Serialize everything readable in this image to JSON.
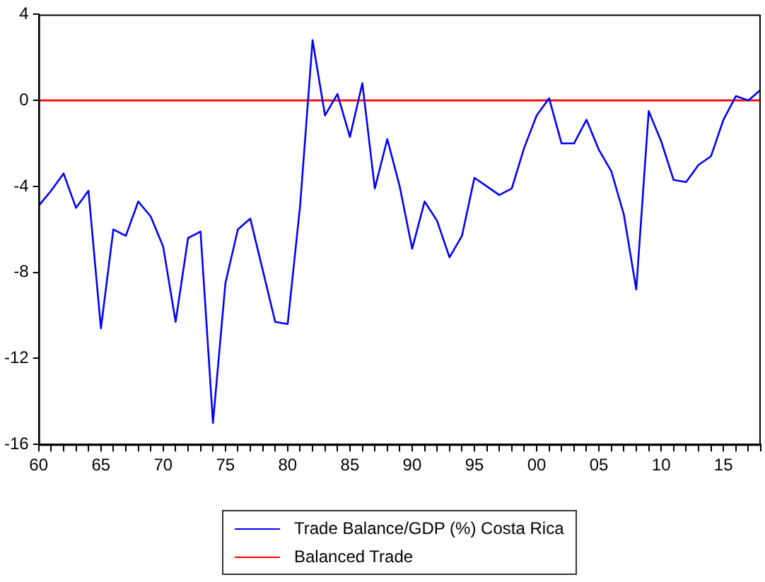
{
  "chart_data": {
    "type": "line",
    "xlim": [
      1960,
      2018
    ],
    "ylim": [
      -16,
      4
    ],
    "yticks": [
      -16,
      -12,
      -8,
      -4,
      0,
      4
    ],
    "xticks": [
      {
        "value": 1960,
        "label": "60"
      },
      {
        "value": 1961,
        "label": null
      },
      {
        "value": 1962,
        "label": null
      },
      {
        "value": 1963,
        "label": null
      },
      {
        "value": 1964,
        "label": null
      },
      {
        "value": 1965,
        "label": "65"
      },
      {
        "value": 1966,
        "label": null
      },
      {
        "value": 1967,
        "label": null
      },
      {
        "value": 1968,
        "label": null
      },
      {
        "value": 1969,
        "label": null
      },
      {
        "value": 1970,
        "label": "70"
      },
      {
        "value": 1971,
        "label": null
      },
      {
        "value": 1972,
        "label": null
      },
      {
        "value": 1973,
        "label": null
      },
      {
        "value": 1974,
        "label": null
      },
      {
        "value": 1975,
        "label": "75"
      },
      {
        "value": 1976,
        "label": null
      },
      {
        "value": 1977,
        "label": null
      },
      {
        "value": 1978,
        "label": null
      },
      {
        "value": 1979,
        "label": null
      },
      {
        "value": 1980,
        "label": "80"
      },
      {
        "value": 1981,
        "label": null
      },
      {
        "value": 1982,
        "label": null
      },
      {
        "value": 1983,
        "label": null
      },
      {
        "value": 1984,
        "label": null
      },
      {
        "value": 1985,
        "label": "85"
      },
      {
        "value": 1986,
        "label": null
      },
      {
        "value": 1987,
        "label": null
      },
      {
        "value": 1988,
        "label": null
      },
      {
        "value": 1989,
        "label": null
      },
      {
        "value": 1990,
        "label": "90"
      },
      {
        "value": 1991,
        "label": null
      },
      {
        "value": 1992,
        "label": null
      },
      {
        "value": 1993,
        "label": null
      },
      {
        "value": 1994,
        "label": null
      },
      {
        "value": 1995,
        "label": "95"
      },
      {
        "value": 1996,
        "label": null
      },
      {
        "value": 1997,
        "label": null
      },
      {
        "value": 1998,
        "label": null
      },
      {
        "value": 1999,
        "label": null
      },
      {
        "value": 2000,
        "label": "00"
      },
      {
        "value": 2001,
        "label": null
      },
      {
        "value": 2002,
        "label": null
      },
      {
        "value": 2003,
        "label": null
      },
      {
        "value": 2004,
        "label": null
      },
      {
        "value": 2005,
        "label": "05"
      },
      {
        "value": 2006,
        "label": null
      },
      {
        "value": 2007,
        "label": null
      },
      {
        "value": 2008,
        "label": null
      },
      {
        "value": 2009,
        "label": null
      },
      {
        "value": 2010,
        "label": "10"
      },
      {
        "value": 2011,
        "label": null
      },
      {
        "value": 2012,
        "label": null
      },
      {
        "value": 2013,
        "label": null
      },
      {
        "value": 2014,
        "label": null
      },
      {
        "value": 2015,
        "label": "15"
      },
      {
        "value": 2016,
        "label": null
      },
      {
        "value": 2017,
        "label": null
      },
      {
        "value": 2018,
        "label": null
      }
    ],
    "x": [
      1960,
      1961,
      1962,
      1963,
      1964,
      1965,
      1966,
      1967,
      1968,
      1969,
      1970,
      1971,
      1972,
      1973,
      1974,
      1975,
      1976,
      1977,
      1978,
      1979,
      1980,
      1981,
      1982,
      1983,
      1984,
      1985,
      1986,
      1987,
      1988,
      1989,
      1990,
      1991,
      1992,
      1993,
      1994,
      1995,
      1996,
      1997,
      1998,
      1999,
      2000,
      2001,
      2002,
      2003,
      2004,
      2005,
      2006,
      2007,
      2008,
      2009,
      2010,
      2011,
      2012,
      2013,
      2014,
      2015,
      2016,
      2017,
      2018
    ],
    "series": [
      {
        "name": "Trade Balance/GDP (%) Costa Rica",
        "color": "#0000ff",
        "values": [
          -4.9,
          -4.2,
          -3.4,
          -5.0,
          -4.2,
          -10.6,
          -6.0,
          -6.3,
          -4.7,
          -5.4,
          -6.8,
          -10.3,
          -6.4,
          -6.1,
          -15.0,
          -8.5,
          -6.0,
          -5.5,
          -7.9,
          -10.3,
          -10.4,
          -4.9,
          2.8,
          -0.7,
          0.3,
          -1.7,
          0.8,
          -4.1,
          -1.8,
          -4.0,
          -6.9,
          -4.7,
          -5.6,
          -7.3,
          -6.3,
          -3.6,
          -4.0,
          -4.4,
          -4.1,
          -2.2,
          -0.7,
          0.1,
          -2.0,
          -2.0,
          -0.9,
          -2.3,
          -3.3,
          -5.3,
          -8.8,
          -0.5,
          -1.9,
          -3.7,
          -3.8,
          -3.0,
          -2.6,
          -0.9,
          0.2,
          0.0,
          0.5
        ]
      },
      {
        "name": "Balanced Trade",
        "color": "#ff0000",
        "x": [
          1960,
          2018
        ],
        "values": [
          0,
          0
        ]
      }
    ],
    "grid": false,
    "legend": "bottom",
    "marker": "none",
    "line_style": "solid"
  }
}
